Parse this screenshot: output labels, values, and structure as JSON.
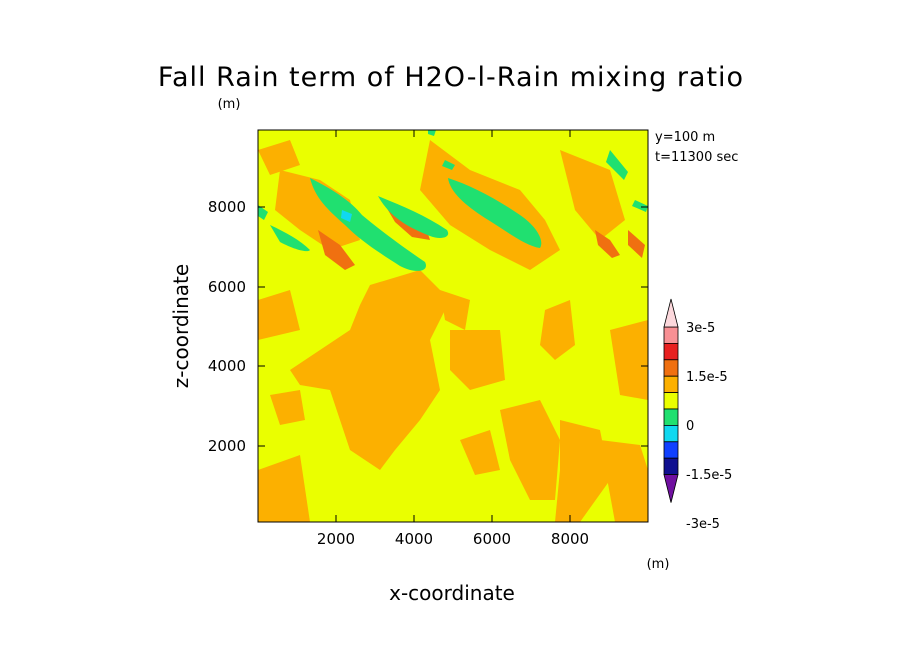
{
  "chart_data": {
    "type": "heatmap",
    "title": "Fall Rain term of H2O-l-Rain mixing ratio",
    "title_unit": "(m)",
    "xlabel": "x-coordinate",
    "ylabel": "z-coordinate",
    "xlim": [
      0,
      10000
    ],
    "ylim": [
      0,
      10000
    ],
    "xticks": [
      "2000",
      "4000",
      "6000",
      "8000"
    ],
    "yticks": [
      "2000",
      "4000",
      "6000",
      "8000"
    ],
    "annotations": [
      "y=100 m",
      "t=11300 sec"
    ],
    "colorbar": {
      "unit": "(m)",
      "labels": [
        "3e-5",
        "1.5e-5",
        "0",
        "-1.5e-5",
        "-3e-5"
      ],
      "colors": [
        "#fcd8dc",
        "#f89094",
        "#e82020",
        "#f07010",
        "#fcb000",
        "#eaff00",
        "#20e070",
        "#10d8f0",
        "#1040ff",
        "#101090",
        "#7010a0"
      ]
    },
    "field_levels": {
      "background": "0 to 3.75e-6 (yellow)",
      "broad_regions": "3.75e-6 to 7.5e-6 (orange)",
      "band_cores": "7.5e-6 to 1.5e-5 (dark orange)",
      "negative_bands": "-3.75e-6 to 0 (green)",
      "tiny_minima": "-7.5e-6 to -3.75e-6 (cyan)"
    }
  }
}
